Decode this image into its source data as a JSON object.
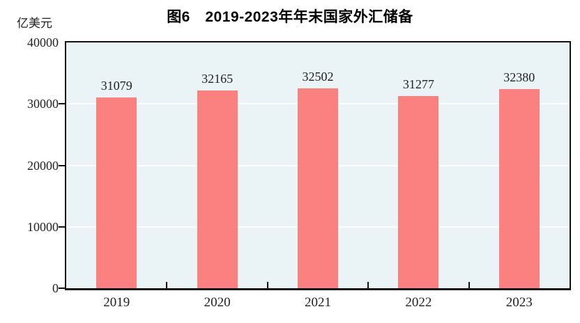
{
  "chart_data": {
    "type": "bar",
    "title": "图6　2019-2023年年末国家外汇储备",
    "unit_label": "亿美元",
    "categories": [
      "2019",
      "2020",
      "2021",
      "2022",
      "2023"
    ],
    "values": [
      31079,
      32165,
      32502,
      31277,
      32380
    ],
    "value_labels": [
      "31079",
      "32165",
      "32502",
      "31277",
      "32380"
    ],
    "xlabel": "",
    "ylabel": "亿美元",
    "ylim": [
      0,
      40000
    ],
    "yticks": [
      0,
      10000,
      20000,
      30000,
      40000
    ],
    "ytick_labels": [
      "0",
      "10000",
      "20000",
      "30000",
      "40000"
    ],
    "grid": "horizontal",
    "legend": "none",
    "colors": {
      "bar": "#FB8080",
      "plot_background": "#EAF3F6",
      "gridline": "#FFFFFF",
      "axis": "#111111",
      "text": "#1F1F1F",
      "page_background": "#FFFFFF"
    }
  }
}
